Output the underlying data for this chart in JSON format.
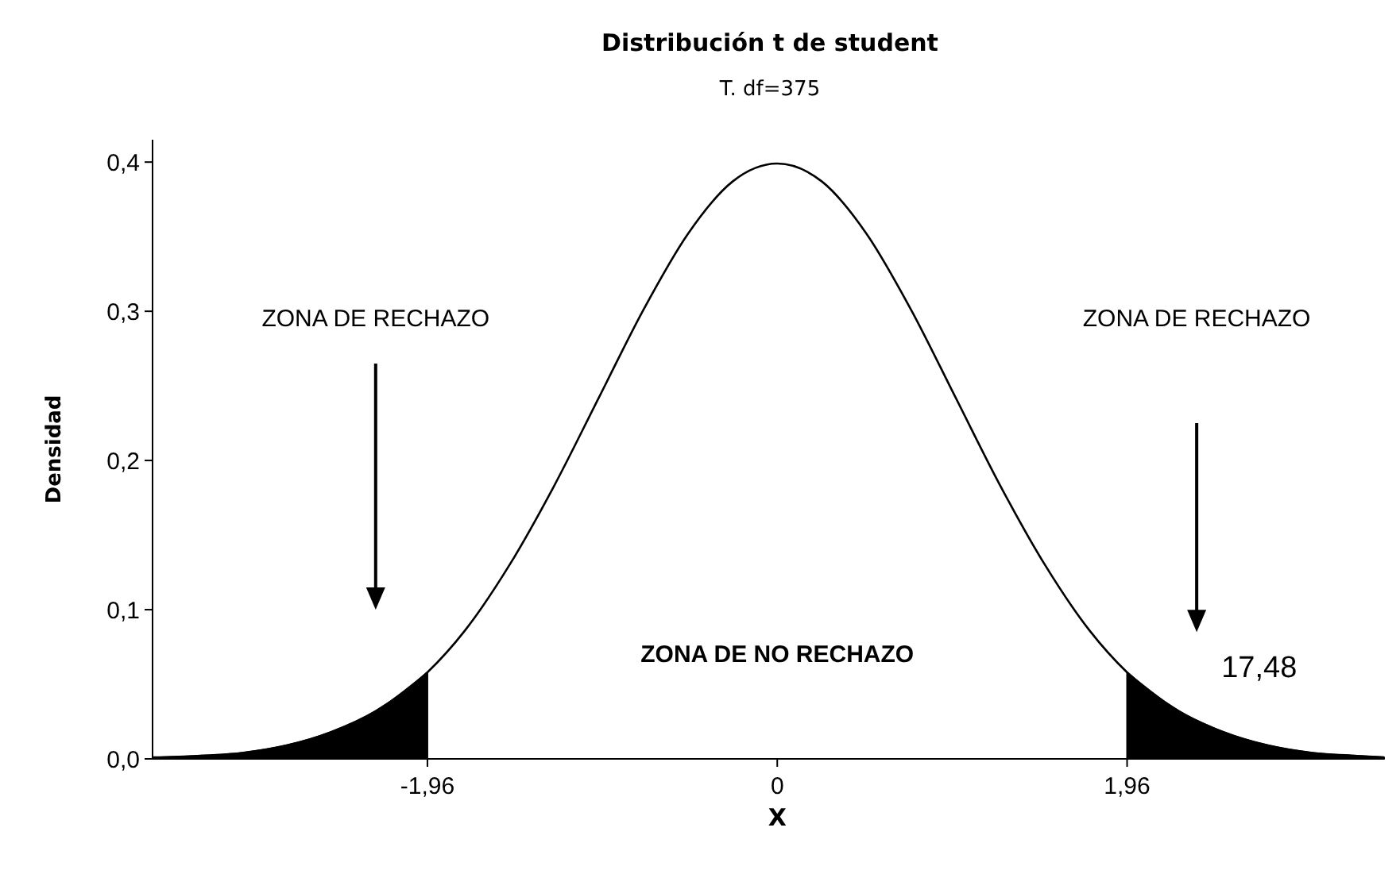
{
  "chart_data": {
    "type": "line",
    "title": "Distribución t de student",
    "subtitle": "T. df=375",
    "xlabel": "X",
    "ylabel": "Densidad",
    "xlim": [
      -3.5,
      3.4
    ],
    "ylim": [
      0,
      0.415
    ],
    "xticks": [
      {
        "value": -1.96,
        "label": "-1,96"
      },
      0,
      {
        "value": 1.96,
        "label": "1,96"
      }
    ],
    "yticks": [
      {
        "value": 0,
        "label": "0,0"
      },
      {
        "value": 0.1,
        "label": "0,1"
      },
      {
        "value": 0.2,
        "label": "0,2"
      },
      {
        "value": 0.3,
        "label": "0,3"
      },
      {
        "value": 0.4,
        "label": "0,4"
      }
    ],
    "grid": false,
    "marker": "none",
    "line_style": "solid",
    "series": [
      {
        "color": "#000000",
        "x": [
          -3.5,
          -3.25,
          -3,
          -2.75,
          -2.5,
          -2.25,
          -1.96,
          -1.75,
          -1.5,
          -1.25,
          -1,
          -0.75,
          -0.5,
          -0.25,
          0,
          0.25,
          0.5,
          0.75,
          1,
          1.25,
          1.5,
          1.75,
          1.96,
          2.25,
          2.5,
          2.75,
          3,
          3.25,
          3.4
        ],
        "values": [
          0.001,
          0.002,
          0.004,
          0.009,
          0.018,
          0.032,
          0.058,
          0.086,
          0.13,
          0.183,
          0.242,
          0.301,
          0.352,
          0.387,
          0.399,
          0.387,
          0.352,
          0.301,
          0.242,
          0.183,
          0.13,
          0.086,
          0.058,
          0.032,
          0.018,
          0.009,
          0.004,
          0.002,
          0.001
        ]
      },
      {
        "type": "area",
        "color": "#000000",
        "x": [
          -3.5,
          -3.25,
          -3,
          -2.75,
          -2.5,
          -2.25,
          -1.96
        ],
        "values": [
          0.001,
          0.002,
          0.004,
          0.009,
          0.018,
          0.032,
          0.058
        ]
      },
      {
        "type": "area",
        "color": "#000000",
        "x": [
          1.96,
          2.25,
          2.5,
          2.75,
          3,
          3.25,
          3.4
        ],
        "values": [
          0.058,
          0.032,
          0.018,
          0.009,
          0.004,
          0.002,
          0.001
        ]
      }
    ],
    "annotations": [
      "ZONA DE RECHAZO",
      "ZONA DE RECHAZO",
      "ZONA DE NO RECHAZO",
      "17,48"
    ]
  }
}
